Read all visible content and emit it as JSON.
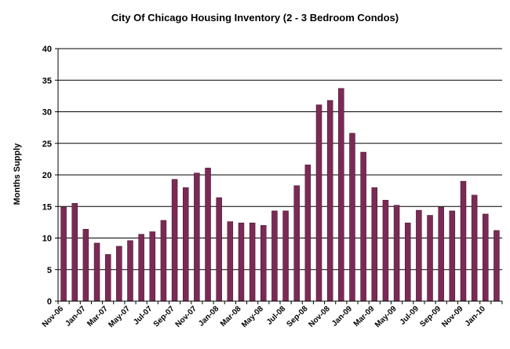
{
  "chart_data": {
    "type": "bar",
    "title": "City Of Chicago Housing Inventory (2 - 3 Bedroom Condos)",
    "xlabel": "",
    "ylabel": "Months Supply",
    "ylim": [
      0,
      40
    ],
    "yticks": [
      "0",
      "5",
      "10",
      "15",
      "20",
      "25",
      "30",
      "35",
      "40"
    ],
    "grid": "horizontal",
    "legend": "none",
    "bar_color": "#7b2a55",
    "categories": [
      "Nov-06",
      "Dec-06",
      "Jan-07",
      "Feb-07",
      "Mar-07",
      "Apr-07",
      "May-07",
      "Jun-07",
      "Jul-07",
      "Aug-07",
      "Sep-07",
      "Oct-07",
      "Nov-07",
      "Dec-07",
      "Jan-08",
      "Feb-08",
      "Mar-08",
      "Apr-08",
      "May-08",
      "Jun-08",
      "Jul-08",
      "Aug-08",
      "Sep-08",
      "Oct-08",
      "Nov-08",
      "Dec-08",
      "Jan-09",
      "Feb-09",
      "Mar-09",
      "Apr-09",
      "May-09",
      "Jun-09",
      "Jul-09",
      "Aug-09",
      "Sep-09",
      "Oct-09",
      "Nov-09",
      "Dec-09",
      "Jan-10",
      "Feb-10"
    ],
    "tick_labels": [
      "Nov-06",
      "Jan-07",
      "Mar-07",
      "May-07",
      "Jul-07",
      "Sep-07",
      "Nov-07",
      "Jan-08",
      "Mar-08",
      "May-08",
      "Jul-08",
      "Sep-08",
      "Nov-08",
      "Jan-09",
      "Mar-09",
      "May-09",
      "Jul-09",
      "Sep-09",
      "Nov-09",
      "Jan-10"
    ],
    "values": [
      14.9,
      15.5,
      11.4,
      9.2,
      7.4,
      8.7,
      9.6,
      10.6,
      11.0,
      12.8,
      19.3,
      18.0,
      20.3,
      21.1,
      16.4,
      12.6,
      12.4,
      12.4,
      12.0,
      14.3,
      14.3,
      18.3,
      21.6,
      31.1,
      31.8,
      33.7,
      26.6,
      23.6,
      18.0,
      16.0,
      15.2,
      12.4,
      14.4,
      13.6,
      14.9,
      14.3,
      19.0,
      16.8,
      13.8,
      11.2
    ]
  }
}
